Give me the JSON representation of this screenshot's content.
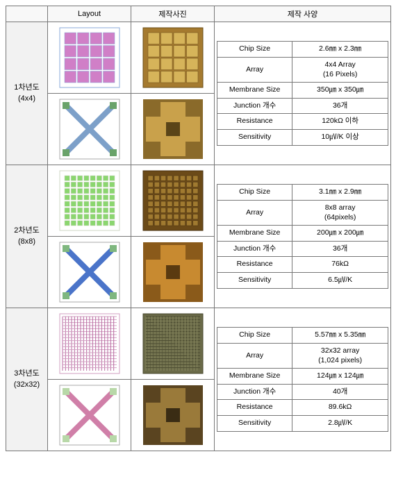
{
  "headers": {
    "blank": "",
    "layout": "Layout",
    "photo": "제작사진",
    "spec": "제작 사양"
  },
  "col_widths": {
    "label": 60,
    "layout": 120,
    "photo": 120,
    "spec": 254
  },
  "rows": [
    {
      "label_line1": "1차년도",
      "label_line2": "(4x4)",
      "spec": [
        {
          "k": "Chip Size",
          "v": "2.6㎜ x 2.3㎜"
        },
        {
          "k": "Array",
          "v": "4x4 Array\n(16 Pixels)"
        },
        {
          "k": "Membrane Size",
          "v": "350㎛ x 350㎛"
        },
        {
          "k": "Junction 개수",
          "v": "36개"
        },
        {
          "k": "Resistance",
          "v": "120kΩ 이하"
        },
        {
          "k": "Sensitivity",
          "v": "10㎶/K 이상"
        }
      ],
      "thumbs": [
        {
          "type": "layout-grid",
          "bg": "#ffffff",
          "fg": "#d07fc7",
          "accent": "#8aa8d8",
          "grid": 4
        },
        {
          "type": "photo-grid",
          "bg": "#a57a2f",
          "fg": "#d6b45a",
          "accent": "#6b4f1a",
          "grid": 4
        },
        {
          "type": "layout-x",
          "bg": "#ffffff",
          "fg": "#7da0c9",
          "accent": "#6aa36a"
        },
        {
          "type": "photo-cross",
          "bg": "#8a6a2a",
          "fg": "#c9a14b",
          "accent": "#5a4418"
        }
      ]
    },
    {
      "label_line1": "2차년도",
      "label_line2": "(8x8)",
      "spec": [
        {
          "k": "Chip Size",
          "v": "3.1㎜ x 2.9㎜"
        },
        {
          "k": "Array",
          "v": "8x8 array\n(64pixels)"
        },
        {
          "k": "Membrane Size",
          "v": "200㎛ x 200㎛"
        },
        {
          "k": "Junction 개수",
          "v": "36개"
        },
        {
          "k": "Resistance",
          "v": "76kΩ"
        },
        {
          "k": "Sensitivity",
          "v": "6.5㎶/K"
        }
      ],
      "thumbs": [
        {
          "type": "layout-grid",
          "bg": "#ffffff",
          "fg": "#8bd66f",
          "accent": "#cfd7c4",
          "grid": 8
        },
        {
          "type": "photo-grid",
          "bg": "#6b4a18",
          "fg": "#a07a30",
          "accent": "#4a3210",
          "grid": 8
        },
        {
          "type": "layout-x",
          "bg": "#ffffff",
          "fg": "#4a74c9",
          "accent": "#7fb77f"
        },
        {
          "type": "photo-cross",
          "bg": "#8a5a1a",
          "fg": "#c88a30",
          "accent": "#5a3a10"
        }
      ]
    },
    {
      "label_line1": "3차년도",
      "label_line2": "(32x32)",
      "spec": [
        {
          "k": "Chip Size",
          "v": "5.57㎜ x 5.35㎜"
        },
        {
          "k": "Array",
          "v": "32x32 array\n(1,024 pixels)"
        },
        {
          "k": "Membrane Size",
          "v": "124㎛ x 124㎛"
        },
        {
          "k": "Junction 개수",
          "v": "40개"
        },
        {
          "k": "Resistance",
          "v": "89.6kΩ"
        },
        {
          "k": "Sensitivity",
          "v": "2.8㎶/K"
        }
      ],
      "thumbs": [
        {
          "type": "layout-dense",
          "bg": "#ffffff",
          "fg": "#b86aa0",
          "accent": "#d29fc2"
        },
        {
          "type": "photo-dense",
          "bg": "#6a6a48",
          "fg": "#8a8a60",
          "accent": "#4a4a30"
        },
        {
          "type": "layout-x",
          "bg": "#ffffff",
          "fg": "#d07fa8",
          "accent": "#b8d8a8"
        },
        {
          "type": "photo-cross",
          "bg": "#5a4420",
          "fg": "#9a7a3a",
          "accent": "#3a2c14"
        }
      ]
    }
  ]
}
